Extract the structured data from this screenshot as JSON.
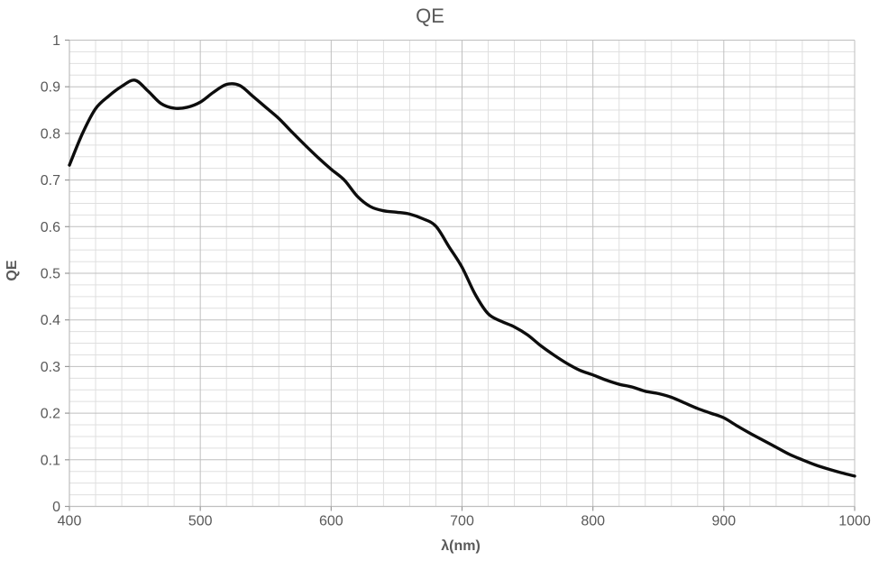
{
  "chart_data": {
    "type": "line",
    "title": "QE",
    "xlabel": "λ(nm)",
    "ylabel": "QE",
    "legend": "none",
    "grid": "major+minor",
    "xlim": [
      400,
      1000
    ],
    "ylim": [
      0,
      1
    ],
    "x_major_unit": 100,
    "x_minor_unit": 20,
    "y_major_unit": 0.1,
    "y_minor_unit": 0.025,
    "x_tick_labels": [
      "400",
      "500",
      "600",
      "700",
      "800",
      "900",
      "1000"
    ],
    "x_tick_values": [
      400,
      500,
      600,
      700,
      800,
      900,
      1000
    ],
    "y_tick_labels": [
      "0",
      "0.1",
      "0.2",
      "0.3",
      "0.4",
      "0.5",
      "0.6",
      "0.7",
      "0.8",
      "0.9",
      "1"
    ],
    "y_tick_values": [
      0,
      0.1,
      0.2,
      0.3,
      0.4,
      0.5,
      0.6,
      0.7,
      0.8,
      0.9,
      1
    ],
    "x": [
      400,
      410,
      420,
      430,
      440,
      450,
      460,
      470,
      480,
      490,
      500,
      510,
      520,
      530,
      540,
      550,
      560,
      570,
      580,
      590,
      600,
      610,
      620,
      630,
      640,
      650,
      660,
      670,
      680,
      690,
      700,
      710,
      720,
      730,
      740,
      750,
      760,
      770,
      780,
      790,
      800,
      810,
      820,
      830,
      840,
      850,
      860,
      870,
      880,
      890,
      900,
      910,
      920,
      930,
      940,
      950,
      960,
      970,
      980,
      990,
      1000
    ],
    "series": [
      {
        "name": "QE",
        "values": [
          0.732,
          0.8,
          0.853,
          0.88,
          0.901,
          0.914,
          0.891,
          0.864,
          0.854,
          0.856,
          0.867,
          0.888,
          0.905,
          0.903,
          0.88,
          0.856,
          0.832,
          0.803,
          0.775,
          0.748,
          0.723,
          0.7,
          0.665,
          0.643,
          0.634,
          0.631,
          0.627,
          0.617,
          0.601,
          0.557,
          0.513,
          0.455,
          0.413,
          0.397,
          0.385,
          0.368,
          0.345,
          0.325,
          0.307,
          0.292,
          0.282,
          0.271,
          0.262,
          0.256,
          0.247,
          0.242,
          0.234,
          0.222,
          0.21,
          0.2,
          0.19,
          0.173,
          0.157,
          0.142,
          0.127,
          0.112,
          0.1,
          0.089,
          0.08,
          0.072,
          0.065
        ]
      }
    ],
    "colors": {
      "line": "#0d0d0d",
      "major_grid": "#bfbfbf",
      "minor_grid": "#dfdfdf",
      "axis_line": "#bfbfbf",
      "tick_mark": "#999999",
      "text": "#595959"
    }
  }
}
